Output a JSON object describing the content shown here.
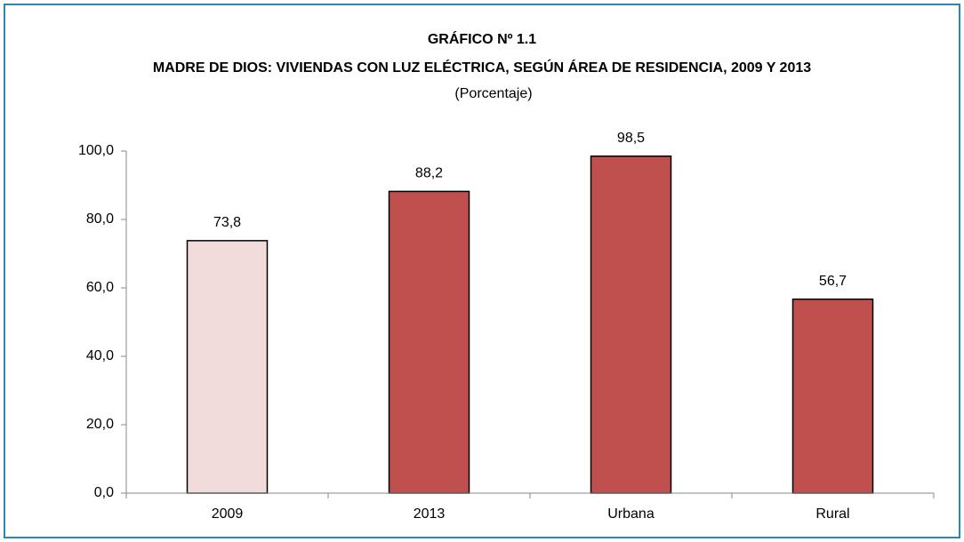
{
  "chart_data": {
    "type": "bar",
    "title": "GRÁFICO Nº 1.1",
    "subtitle": "MADRE DE DIOS: VIVIENDAS CON LUZ ELÉCTRICA, SEGÚN ÁREA DE RESIDENCIA,  2009 Y 2013",
    "unit": "(Porcentaje)",
    "categories": [
      "2009",
      "2013",
      "Urbana",
      "Rural"
    ],
    "values": [
      73.8,
      88.2,
      98.5,
      56.7
    ],
    "value_labels": [
      "73,8",
      "88,2",
      "98,5",
      "56,7"
    ],
    "colors": [
      "#f2dcdb",
      "#c0504d",
      "#c0504d",
      "#c0504d"
    ],
    "ylim": [
      0,
      100
    ],
    "yticks": [
      {
        "value": 0,
        "label": "0,0"
      },
      {
        "value": 20,
        "label": "20,0"
      },
      {
        "value": 40,
        "label": "40,0"
      },
      {
        "value": 60,
        "label": "60,0"
      },
      {
        "value": 80,
        "label": "80,0"
      },
      {
        "value": 100,
        "label": "100,0"
      }
    ],
    "grid": false
  }
}
